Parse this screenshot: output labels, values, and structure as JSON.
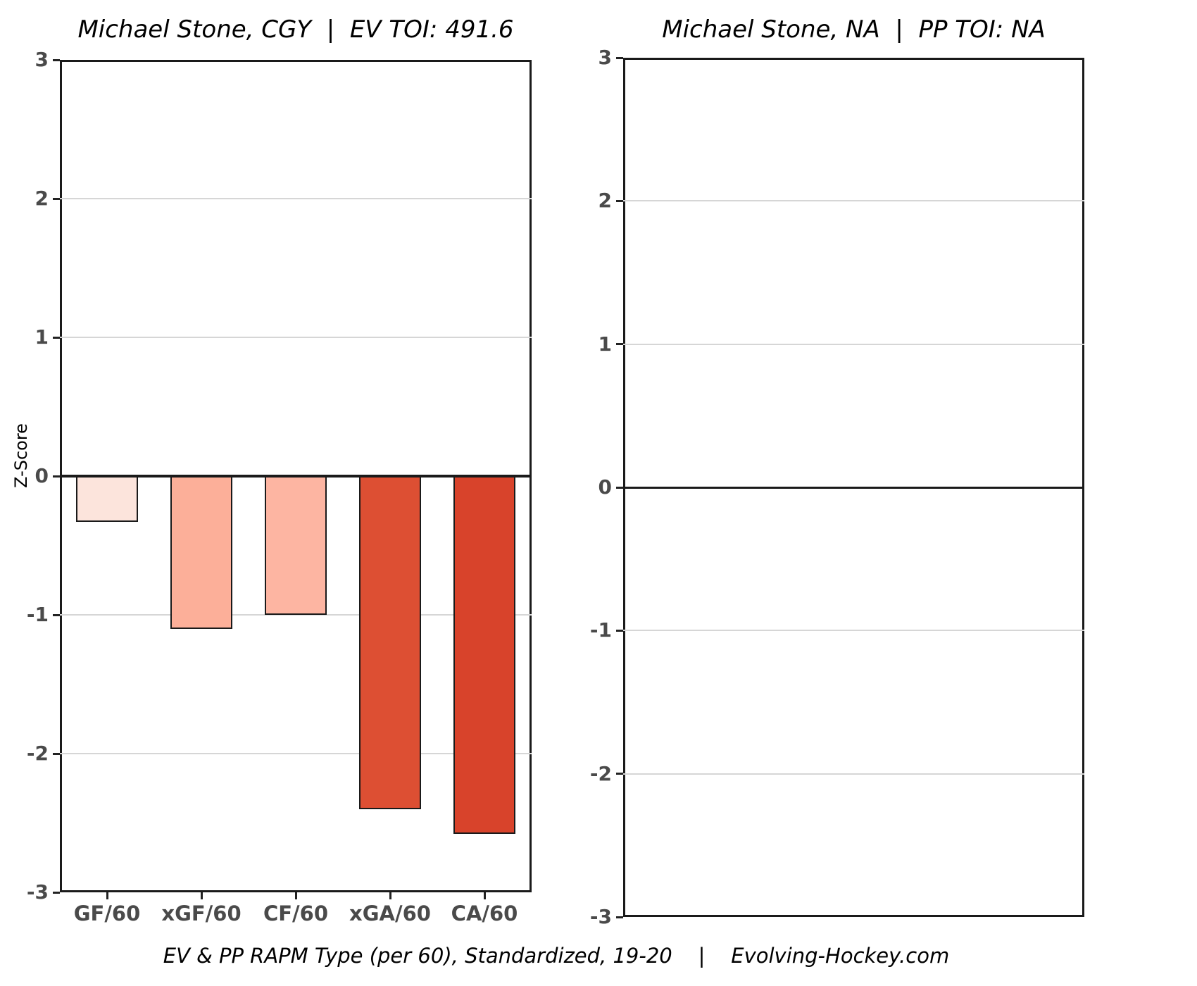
{
  "figure": {
    "caption": "EV & PP RAPM Type (per 60), Standardized, 19-20    |    Evolving-Hockey.com"
  },
  "palette": {
    "zero_line": "#1a1a1a",
    "gridline": "#d6d6d6",
    "tick_label": "#4a4a4a",
    "bar_border": "#1a1a1a",
    "panel_border": "#1a1a1a"
  },
  "chart_data": [
    {
      "type": "bar",
      "title": "Michael Stone, CGY  |  EV TOI: 491.6",
      "ylabel": "Z-Score",
      "xlabel": "",
      "ylim": [
        -3,
        3
      ],
      "yticks": [
        3,
        2,
        1,
        0,
        -1,
        -2,
        -3
      ],
      "grid": true,
      "zero_line": true,
      "legend": "none",
      "categories": [
        "GF/60",
        "xGF/60",
        "CF/60",
        "xGA/60",
        "CA/60"
      ],
      "values": [
        -0.33,
        -1.1,
        -1.0,
        -2.4,
        -2.58
      ],
      "bar_colors": [
        "#fce4dc",
        "#fcaf99",
        "#fdb5a2",
        "#dd4f33",
        "#d8432b"
      ]
    },
    {
      "type": "bar",
      "title": "Michael Stone, NA  |  PP TOI: NA",
      "ylabel": "",
      "xlabel": "",
      "ylim": [
        -3,
        3
      ],
      "yticks": [
        3,
        2,
        1,
        0,
        -1,
        -2,
        -3
      ],
      "grid": true,
      "zero_line": true,
      "legend": "none",
      "categories": [],
      "values": [],
      "bar_colors": []
    }
  ]
}
